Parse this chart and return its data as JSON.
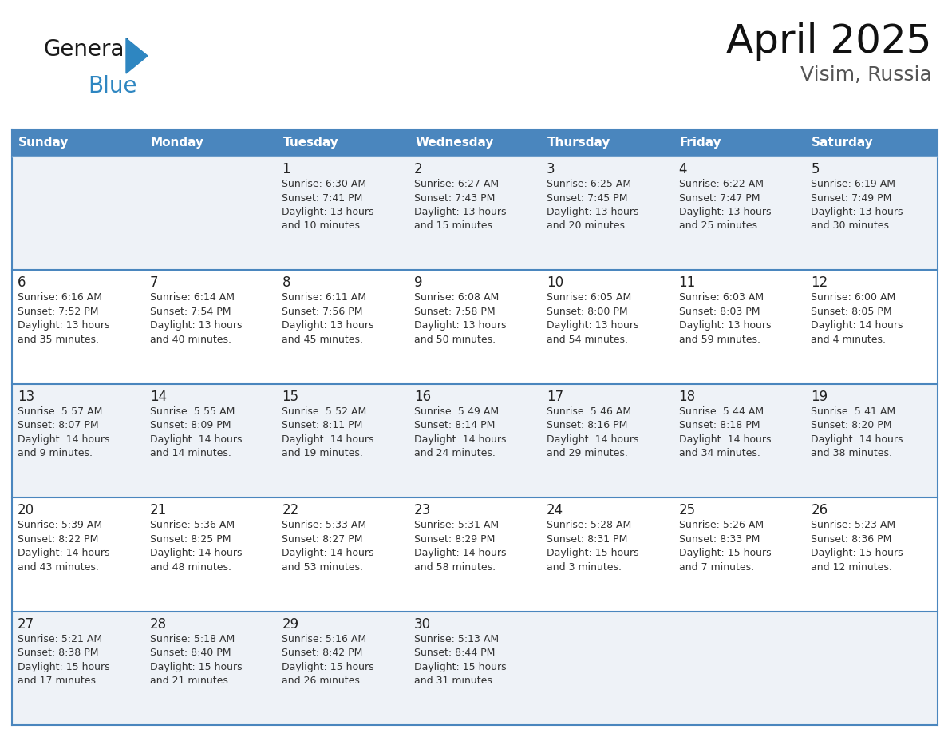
{
  "title": "April 2025",
  "subtitle": "Visim, Russia",
  "header_bg": "#4a86be",
  "header_text_color": "#ffffff",
  "row_bg_odd": "#eef2f7",
  "row_bg_even": "#ffffff",
  "border_color": "#4a86be",
  "text_color": "#333333",
  "day_number_color": "#222222",
  "day_headers": [
    "Sunday",
    "Monday",
    "Tuesday",
    "Wednesday",
    "Thursday",
    "Friday",
    "Saturday"
  ],
  "weeks": [
    [
      {
        "day": "",
        "info": ""
      },
      {
        "day": "",
        "info": ""
      },
      {
        "day": "1",
        "info": "Sunrise: 6:30 AM\nSunset: 7:41 PM\nDaylight: 13 hours\nand 10 minutes."
      },
      {
        "day": "2",
        "info": "Sunrise: 6:27 AM\nSunset: 7:43 PM\nDaylight: 13 hours\nand 15 minutes."
      },
      {
        "day": "3",
        "info": "Sunrise: 6:25 AM\nSunset: 7:45 PM\nDaylight: 13 hours\nand 20 minutes."
      },
      {
        "day": "4",
        "info": "Sunrise: 6:22 AM\nSunset: 7:47 PM\nDaylight: 13 hours\nand 25 minutes."
      },
      {
        "day": "5",
        "info": "Sunrise: 6:19 AM\nSunset: 7:49 PM\nDaylight: 13 hours\nand 30 minutes."
      }
    ],
    [
      {
        "day": "6",
        "info": "Sunrise: 6:16 AM\nSunset: 7:52 PM\nDaylight: 13 hours\nand 35 minutes."
      },
      {
        "day": "7",
        "info": "Sunrise: 6:14 AM\nSunset: 7:54 PM\nDaylight: 13 hours\nand 40 minutes."
      },
      {
        "day": "8",
        "info": "Sunrise: 6:11 AM\nSunset: 7:56 PM\nDaylight: 13 hours\nand 45 minutes."
      },
      {
        "day": "9",
        "info": "Sunrise: 6:08 AM\nSunset: 7:58 PM\nDaylight: 13 hours\nand 50 minutes."
      },
      {
        "day": "10",
        "info": "Sunrise: 6:05 AM\nSunset: 8:00 PM\nDaylight: 13 hours\nand 54 minutes."
      },
      {
        "day": "11",
        "info": "Sunrise: 6:03 AM\nSunset: 8:03 PM\nDaylight: 13 hours\nand 59 minutes."
      },
      {
        "day": "12",
        "info": "Sunrise: 6:00 AM\nSunset: 8:05 PM\nDaylight: 14 hours\nand 4 minutes."
      }
    ],
    [
      {
        "day": "13",
        "info": "Sunrise: 5:57 AM\nSunset: 8:07 PM\nDaylight: 14 hours\nand 9 minutes."
      },
      {
        "day": "14",
        "info": "Sunrise: 5:55 AM\nSunset: 8:09 PM\nDaylight: 14 hours\nand 14 minutes."
      },
      {
        "day": "15",
        "info": "Sunrise: 5:52 AM\nSunset: 8:11 PM\nDaylight: 14 hours\nand 19 minutes."
      },
      {
        "day": "16",
        "info": "Sunrise: 5:49 AM\nSunset: 8:14 PM\nDaylight: 14 hours\nand 24 minutes."
      },
      {
        "day": "17",
        "info": "Sunrise: 5:46 AM\nSunset: 8:16 PM\nDaylight: 14 hours\nand 29 minutes."
      },
      {
        "day": "18",
        "info": "Sunrise: 5:44 AM\nSunset: 8:18 PM\nDaylight: 14 hours\nand 34 minutes."
      },
      {
        "day": "19",
        "info": "Sunrise: 5:41 AM\nSunset: 8:20 PM\nDaylight: 14 hours\nand 38 minutes."
      }
    ],
    [
      {
        "day": "20",
        "info": "Sunrise: 5:39 AM\nSunset: 8:22 PM\nDaylight: 14 hours\nand 43 minutes."
      },
      {
        "day": "21",
        "info": "Sunrise: 5:36 AM\nSunset: 8:25 PM\nDaylight: 14 hours\nand 48 minutes."
      },
      {
        "day": "22",
        "info": "Sunrise: 5:33 AM\nSunset: 8:27 PM\nDaylight: 14 hours\nand 53 minutes."
      },
      {
        "day": "23",
        "info": "Sunrise: 5:31 AM\nSunset: 8:29 PM\nDaylight: 14 hours\nand 58 minutes."
      },
      {
        "day": "24",
        "info": "Sunrise: 5:28 AM\nSunset: 8:31 PM\nDaylight: 15 hours\nand 3 minutes."
      },
      {
        "day": "25",
        "info": "Sunrise: 5:26 AM\nSunset: 8:33 PM\nDaylight: 15 hours\nand 7 minutes."
      },
      {
        "day": "26",
        "info": "Sunrise: 5:23 AM\nSunset: 8:36 PM\nDaylight: 15 hours\nand 12 minutes."
      }
    ],
    [
      {
        "day": "27",
        "info": "Sunrise: 5:21 AM\nSunset: 8:38 PM\nDaylight: 15 hours\nand 17 minutes."
      },
      {
        "day": "28",
        "info": "Sunrise: 5:18 AM\nSunset: 8:40 PM\nDaylight: 15 hours\nand 21 minutes."
      },
      {
        "day": "29",
        "info": "Sunrise: 5:16 AM\nSunset: 8:42 PM\nDaylight: 15 hours\nand 26 minutes."
      },
      {
        "day": "30",
        "info": "Sunrise: 5:13 AM\nSunset: 8:44 PM\nDaylight: 15 hours\nand 31 minutes."
      },
      {
        "day": "",
        "info": ""
      },
      {
        "day": "",
        "info": ""
      },
      {
        "day": "",
        "info": ""
      }
    ]
  ],
  "logo_general_color": "#1a1a1a",
  "logo_blue_color": "#2e86c1",
  "logo_triangle_color": "#2e86c1",
  "title_fontsize": 36,
  "subtitle_fontsize": 18,
  "header_fontsize": 11,
  "day_num_fontsize": 12,
  "info_fontsize": 9
}
